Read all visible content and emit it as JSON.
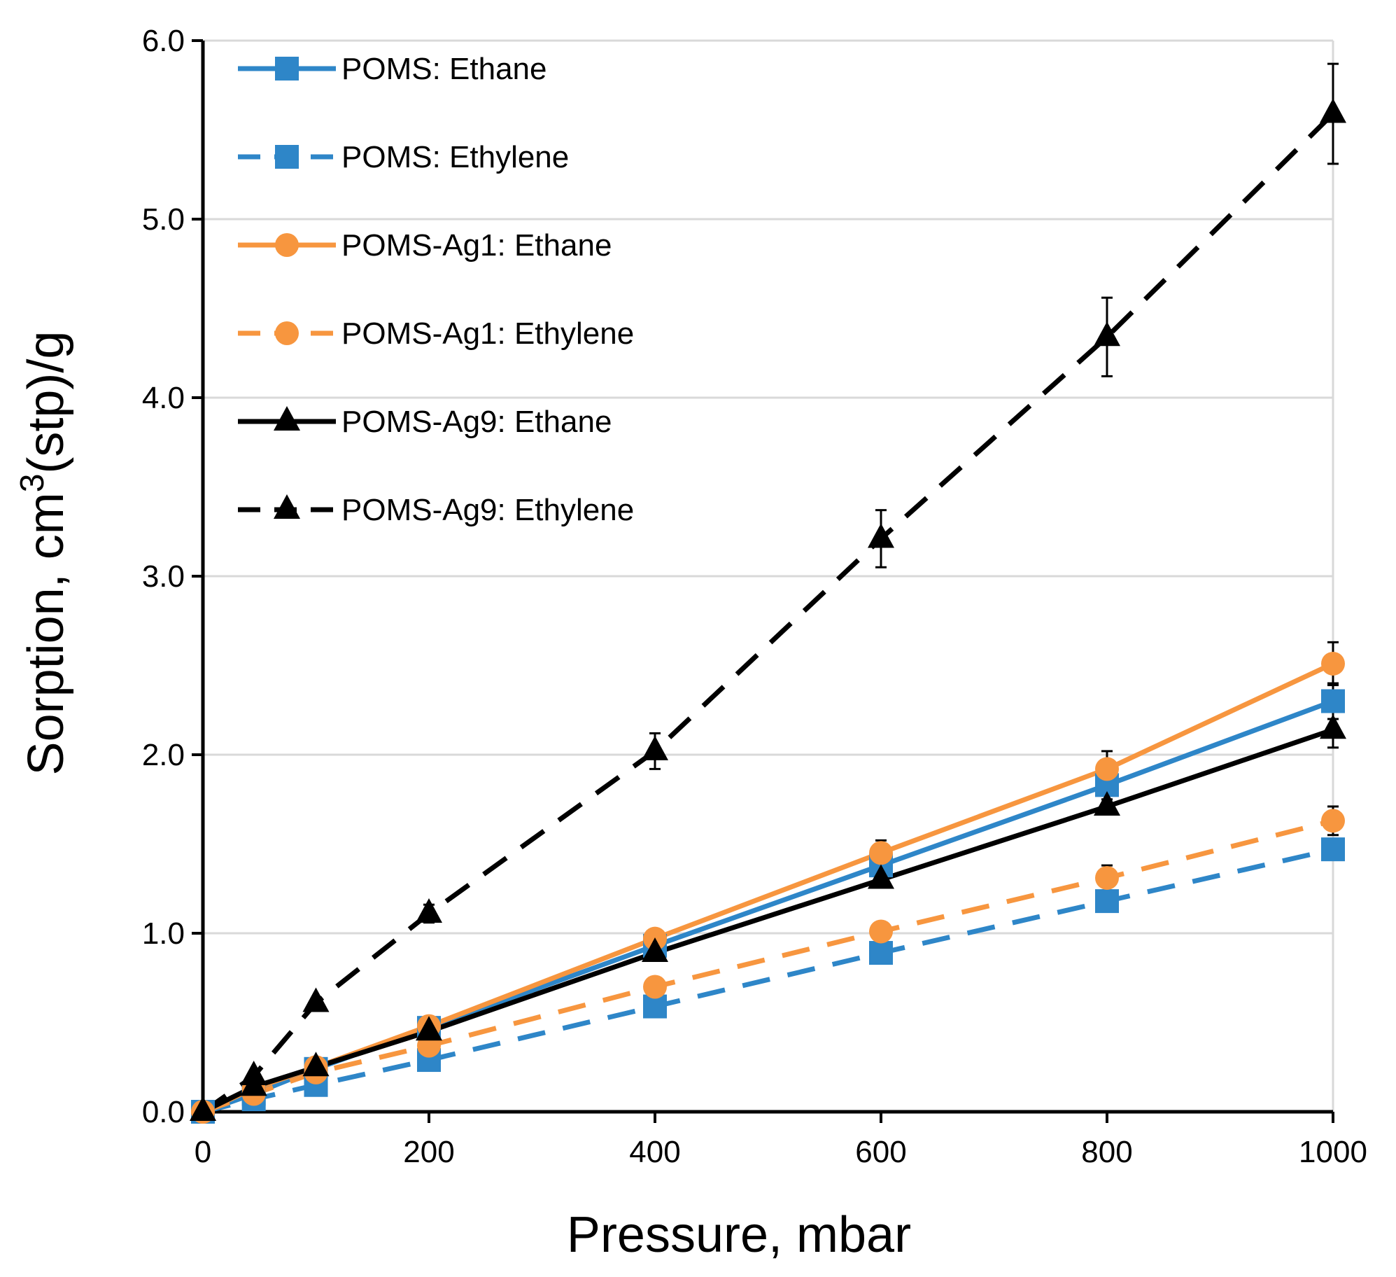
{
  "chart_data": {
    "type": "line",
    "title": "",
    "xlabel": "Pressure, mbar",
    "ylabel": "Sorption, cm3(stp)/g",
    "ylabel_parts": {
      "before": "Sorption, cm",
      "sup": "3",
      "after": "(stp)/g"
    },
    "xlim": [
      0,
      1000
    ],
    "ylim": [
      0,
      6
    ],
    "xticks": [
      0,
      200,
      400,
      600,
      800,
      1000
    ],
    "yticks": [
      0,
      1,
      2,
      3,
      4,
      5,
      6
    ],
    "xtick_labels": [
      "0",
      "200",
      "400",
      "600",
      "800",
      "1000"
    ],
    "ytick_labels": [
      "0.0",
      "1.0",
      "2.0",
      "3.0",
      "4.0",
      "5.0",
      "6.0"
    ],
    "grid": "horizontal",
    "legend_position": "top-left",
    "colors": {
      "blue": "#2E86C8",
      "orange": "#F7963F",
      "black": "#000000",
      "grid": "#D9D9D9"
    },
    "series": [
      {
        "name": "POMS: Ethane",
        "color": "#2E86C8",
        "dash": "solid",
        "marker": "square",
        "x": [
          0,
          45,
          100,
          200,
          400,
          600,
          800,
          1000
        ],
        "y": [
          0,
          0.1,
          0.24,
          0.47,
          0.93,
          1.38,
          1.83,
          2.3
        ],
        "err": [
          0,
          0,
          0,
          0.03,
          0.05,
          0.07,
          0.1,
          0.1
        ]
      },
      {
        "name": "POMS: Ethylene",
        "color": "#2E86C8",
        "dash": "dashed",
        "marker": "square",
        "x": [
          0,
          45,
          100,
          200,
          400,
          600,
          800,
          1000
        ],
        "y": [
          0,
          0.07,
          0.15,
          0.29,
          0.59,
          0.89,
          1.18,
          1.47
        ],
        "err": [
          0,
          0,
          0,
          0,
          0,
          0,
          0,
          0.05
        ]
      },
      {
        "name": "POMS-Ag1: Ethane",
        "color": "#F7963F",
        "dash": "solid",
        "marker": "circle",
        "x": [
          0,
          45,
          100,
          200,
          400,
          600,
          800,
          1000
        ],
        "y": [
          0,
          0.13,
          0.25,
          0.48,
          0.97,
          1.45,
          1.92,
          2.51
        ],
        "err": [
          0,
          0,
          0,
          0,
          0.04,
          0.07,
          0.1,
          0.12
        ]
      },
      {
        "name": "POMS-Ag1: Ethylene",
        "color": "#F7963F",
        "dash": "dashed",
        "marker": "circle",
        "x": [
          0,
          45,
          100,
          200,
          400,
          600,
          800,
          1000
        ],
        "y": [
          0,
          0.1,
          0.22,
          0.37,
          0.7,
          1.01,
          1.31,
          1.63
        ],
        "err": [
          0,
          0,
          0,
          0,
          0,
          0,
          0.07,
          0.08
        ]
      },
      {
        "name": "POMS-Ag9: Ethane",
        "color": "#000000",
        "dash": "solid",
        "marker": "triangle",
        "x": [
          0,
          45,
          100,
          200,
          400,
          600,
          800,
          1000
        ],
        "y": [
          0,
          0.14,
          0.25,
          0.45,
          0.89,
          1.3,
          1.71,
          2.14
        ],
        "err": [
          0,
          0,
          0,
          0,
          0,
          0,
          0.04,
          0.1
        ]
      },
      {
        "name": "POMS-Ag9: Ethylene",
        "color": "#000000",
        "dash": "dashed",
        "marker": "triangle",
        "x": [
          0,
          45,
          100,
          200,
          400,
          600,
          800,
          1000
        ],
        "y": [
          0,
          0.2,
          0.61,
          1.11,
          2.02,
          3.21,
          4.34,
          5.59
        ],
        "err": [
          0,
          0,
          0,
          0.05,
          0.1,
          0.16,
          0.22,
          0.28
        ]
      }
    ]
  }
}
